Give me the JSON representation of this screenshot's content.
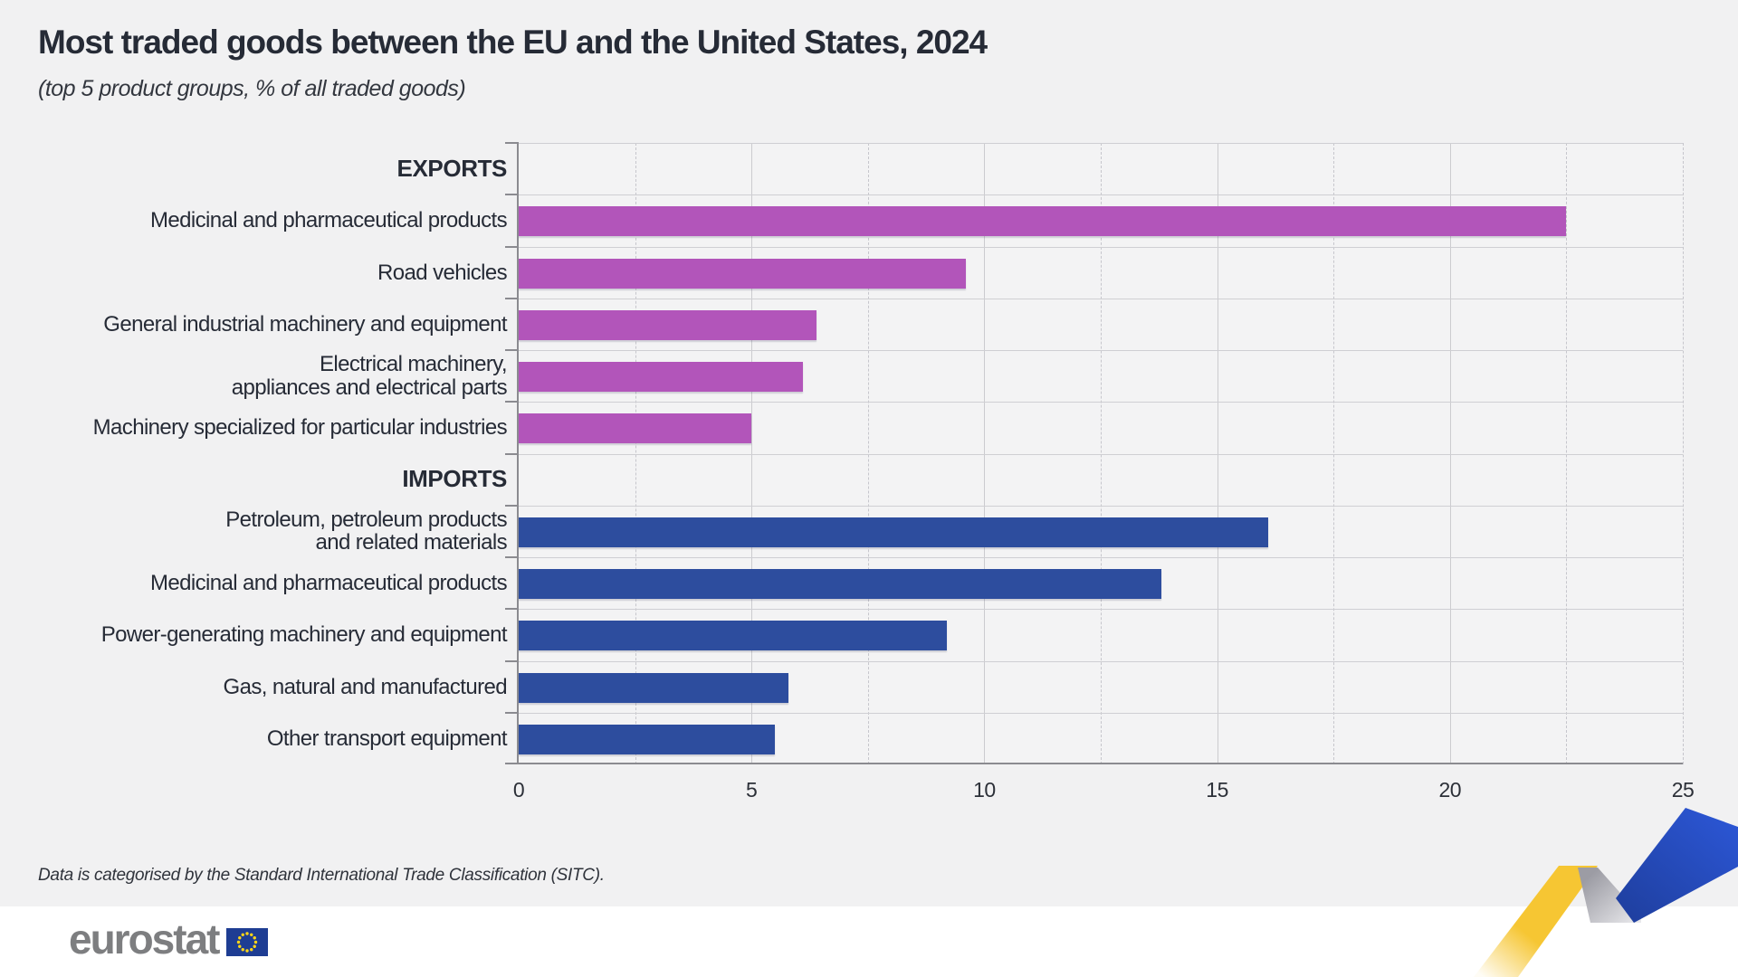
{
  "title": "Most traded goods between the EU and the United States, 2024",
  "subtitle": "(top 5 product groups, % of all traded goods)",
  "footnote": "Data is categorised by the Standard International Trade Classification (SITC).",
  "logo_text": "eurostat",
  "colors": {
    "exports_bar": "#b255ba",
    "imports_bar": "#2d4d9e",
    "page_background": "#f1f1f2",
    "footer_band": "#ffffff",
    "ribbon_yellow": "#f6c633",
    "ribbon_blue": "#2950c8",
    "eu_flag_blue": "#1e3d93",
    "star_yellow": "#ffd617"
  },
  "chart_data": {
    "type": "bar",
    "orientation": "horizontal",
    "title": "Most traded goods between the EU and the United States, 2024",
    "xlabel": "% of all traded goods",
    "ylabel": "",
    "xlim": [
      0,
      25
    ],
    "x_ticks": [
      0,
      5,
      10,
      15,
      20,
      25
    ],
    "minor_gridlines": [
      2.5,
      7.5,
      12.5,
      17.5,
      22.5,
      25
    ],
    "grid": true,
    "legend_position": "none",
    "groups": [
      {
        "name": "EXPORTS",
        "color": "#b255ba",
        "items": [
          {
            "label": [
              "Medicinal and pharmaceutical products"
            ],
            "value": 22.5
          },
          {
            "label": [
              "Road vehicles"
            ],
            "value": 9.6
          },
          {
            "label": [
              "General industrial machinery and equipment"
            ],
            "value": 6.4
          },
          {
            "label": [
              "Electrical machinery,",
              "appliances and electrical parts"
            ],
            "value": 6.1
          },
          {
            "label": [
              "Machinery specialized for particular industries"
            ],
            "value": 5.0
          }
        ]
      },
      {
        "name": "IMPORTS",
        "color": "#2d4d9e",
        "items": [
          {
            "label": [
              "Petroleum, petroleum products",
              "and related materials"
            ],
            "value": 16.1
          },
          {
            "label": [
              "Medicinal and pharmaceutical products"
            ],
            "value": 13.8
          },
          {
            "label": [
              "Power-generating machinery and equipment"
            ],
            "value": 9.2
          },
          {
            "label": [
              "Gas, natural and manufactured"
            ],
            "value": 5.8
          },
          {
            "label": [
              "Other transport equipment"
            ],
            "value": 5.5
          }
        ]
      }
    ]
  }
}
